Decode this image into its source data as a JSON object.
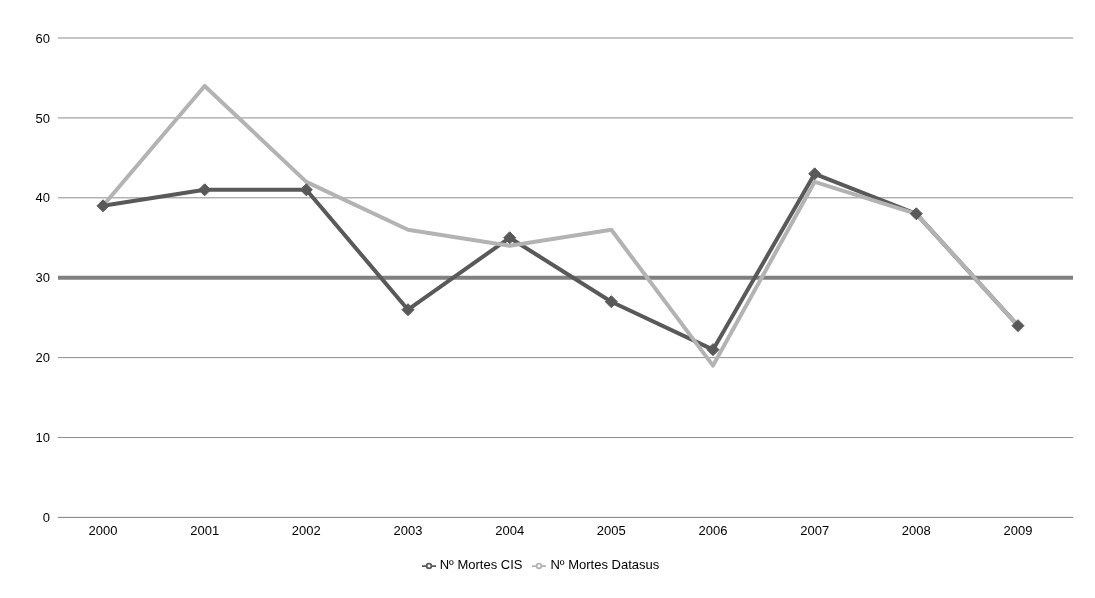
{
  "chart_data": {
    "type": "line",
    "categories": [
      "2000",
      "2001",
      "2002",
      "2003",
      "2004",
      "2005",
      "2006",
      "2007",
      "2008",
      "2009"
    ],
    "series": [
      {
        "name": "Nº Mortes CIS",
        "color": "#595959",
        "marker": "diamond",
        "values": [
          39,
          41,
          41,
          26,
          35,
          27,
          21,
          43,
          38,
          24
        ]
      },
      {
        "name": "Nº Mortes Datasus",
        "color": "#b3b3b3",
        "marker": "none",
        "values": [
          39,
          54,
          42,
          36,
          34,
          36,
          19,
          42,
          38,
          24
        ]
      }
    ],
    "ylim": [
      0,
      60
    ],
    "yticks": [
      0,
      10,
      20,
      30,
      40,
      50,
      60
    ],
    "grid": "y",
    "legend": "bottom",
    "ref_lines": [
      {
        "axis": "y",
        "value": 30,
        "color": "#808080"
      }
    ]
  }
}
